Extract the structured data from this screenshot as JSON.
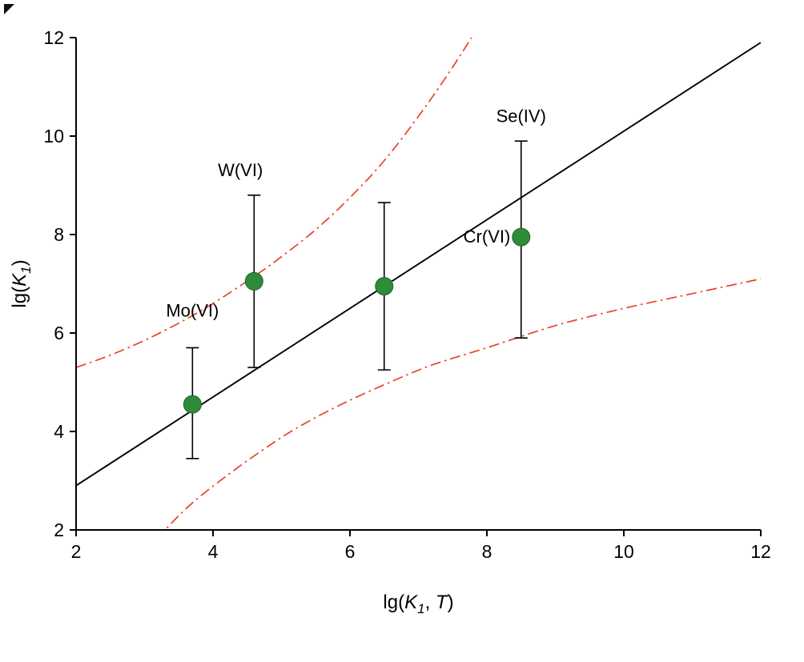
{
  "page": {
    "background": "#ffffff"
  },
  "chart_data": {
    "type": "scatter",
    "title": "",
    "xlabel_parts": [
      {
        "text": "lg(",
        "style": "normal"
      },
      {
        "text": "K",
        "style": "italic"
      },
      {
        "text": "1",
        "style": "italic-sub"
      },
      {
        "text": ", ",
        "style": "normal"
      },
      {
        "text": "T",
        "style": "italic"
      },
      {
        "text": ")",
        "style": "normal"
      }
    ],
    "ylabel_parts": [
      {
        "text": "lg(",
        "style": "normal"
      },
      {
        "text": "K",
        "style": "italic"
      },
      {
        "text": "1",
        "style": "italic-sub"
      },
      {
        "text": ")",
        "style": "normal"
      }
    ],
    "xlim": [
      2,
      12
    ],
    "ylim": [
      2,
      12
    ],
    "xticks": [
      "2",
      "4",
      "6",
      "8",
      "10",
      "12"
    ],
    "yticks": [
      "2",
      "4",
      "6",
      "8",
      "10",
      "12"
    ],
    "xtick_values": [
      2,
      4,
      6,
      8,
      10,
      12
    ],
    "ytick_values": [
      2,
      4,
      6,
      8,
      10,
      12
    ],
    "points": [
      {
        "label": "Mo(VI)",
        "x": 3.7,
        "y": 4.55,
        "err_minus": 1.1,
        "err_plus": 1.15,
        "label_x": 3.7,
        "label_y": 6.45
      },
      {
        "label": "W(VI)",
        "x": 4.6,
        "y": 7.05,
        "err_minus": 1.75,
        "err_plus": 1.75,
        "label_x": 4.4,
        "label_y": 9.3
      },
      {
        "label": "Cr(VI)",
        "x": 6.5,
        "y": 6.95,
        "err_minus": 1.7,
        "err_plus": 1.7,
        "label_x": 8.0,
        "label_y": 7.95
      },
      {
        "label": "Se(IV)",
        "x": 8.5,
        "y": 7.95,
        "err_minus": 2.05,
        "err_plus": 1.95,
        "label_x": 8.5,
        "label_y": 10.4
      }
    ],
    "point_style": {
      "fill": "#2e8b3a",
      "stroke": "#1b6426",
      "radius": 11
    },
    "error_bar": {
      "color": "#000000",
      "cap_width": 16,
      "line_width": 1.6
    },
    "fit_line": {
      "slope": 0.9,
      "intercept": 1.1,
      "color": "#000000",
      "width": 1.9
    },
    "bands": {
      "color": "#e9422a",
      "width": 1.7,
      "dash": "13 5 2.5 5",
      "upper": [
        [
          2,
          5.3
        ],
        [
          2.5,
          5.55
        ],
        [
          3,
          5.85
        ],
        [
          3.5,
          6.2
        ],
        [
          4,
          6.6
        ],
        [
          4.6,
          7.15
        ],
        [
          5,
          7.55
        ],
        [
          5.5,
          8.1
        ],
        [
          6,
          8.75
        ],
        [
          6.5,
          9.5
        ],
        [
          7,
          10.4
        ],
        [
          7.5,
          11.4
        ],
        [
          8,
          12.5
        ]
      ],
      "lower": [
        [
          3.0,
          1.5
        ],
        [
          3.3,
          2.0
        ],
        [
          3.7,
          2.55
        ],
        [
          4.2,
          3.1
        ],
        [
          4.7,
          3.6
        ],
        [
          5.2,
          4.05
        ],
        [
          5.8,
          4.5
        ],
        [
          6.5,
          4.95
        ],
        [
          7.2,
          5.35
        ],
        [
          8,
          5.7
        ],
        [
          9,
          6.15
        ],
        [
          10,
          6.5
        ],
        [
          11,
          6.8
        ],
        [
          12,
          7.1
        ]
      ]
    },
    "axes": {
      "color": "#000000",
      "spine_width": 2,
      "tick_len": 8,
      "tick_font_size": 23,
      "label_font_size": 24,
      "point_label_font_size": 22
    },
    "legend": null,
    "grid": false
  }
}
